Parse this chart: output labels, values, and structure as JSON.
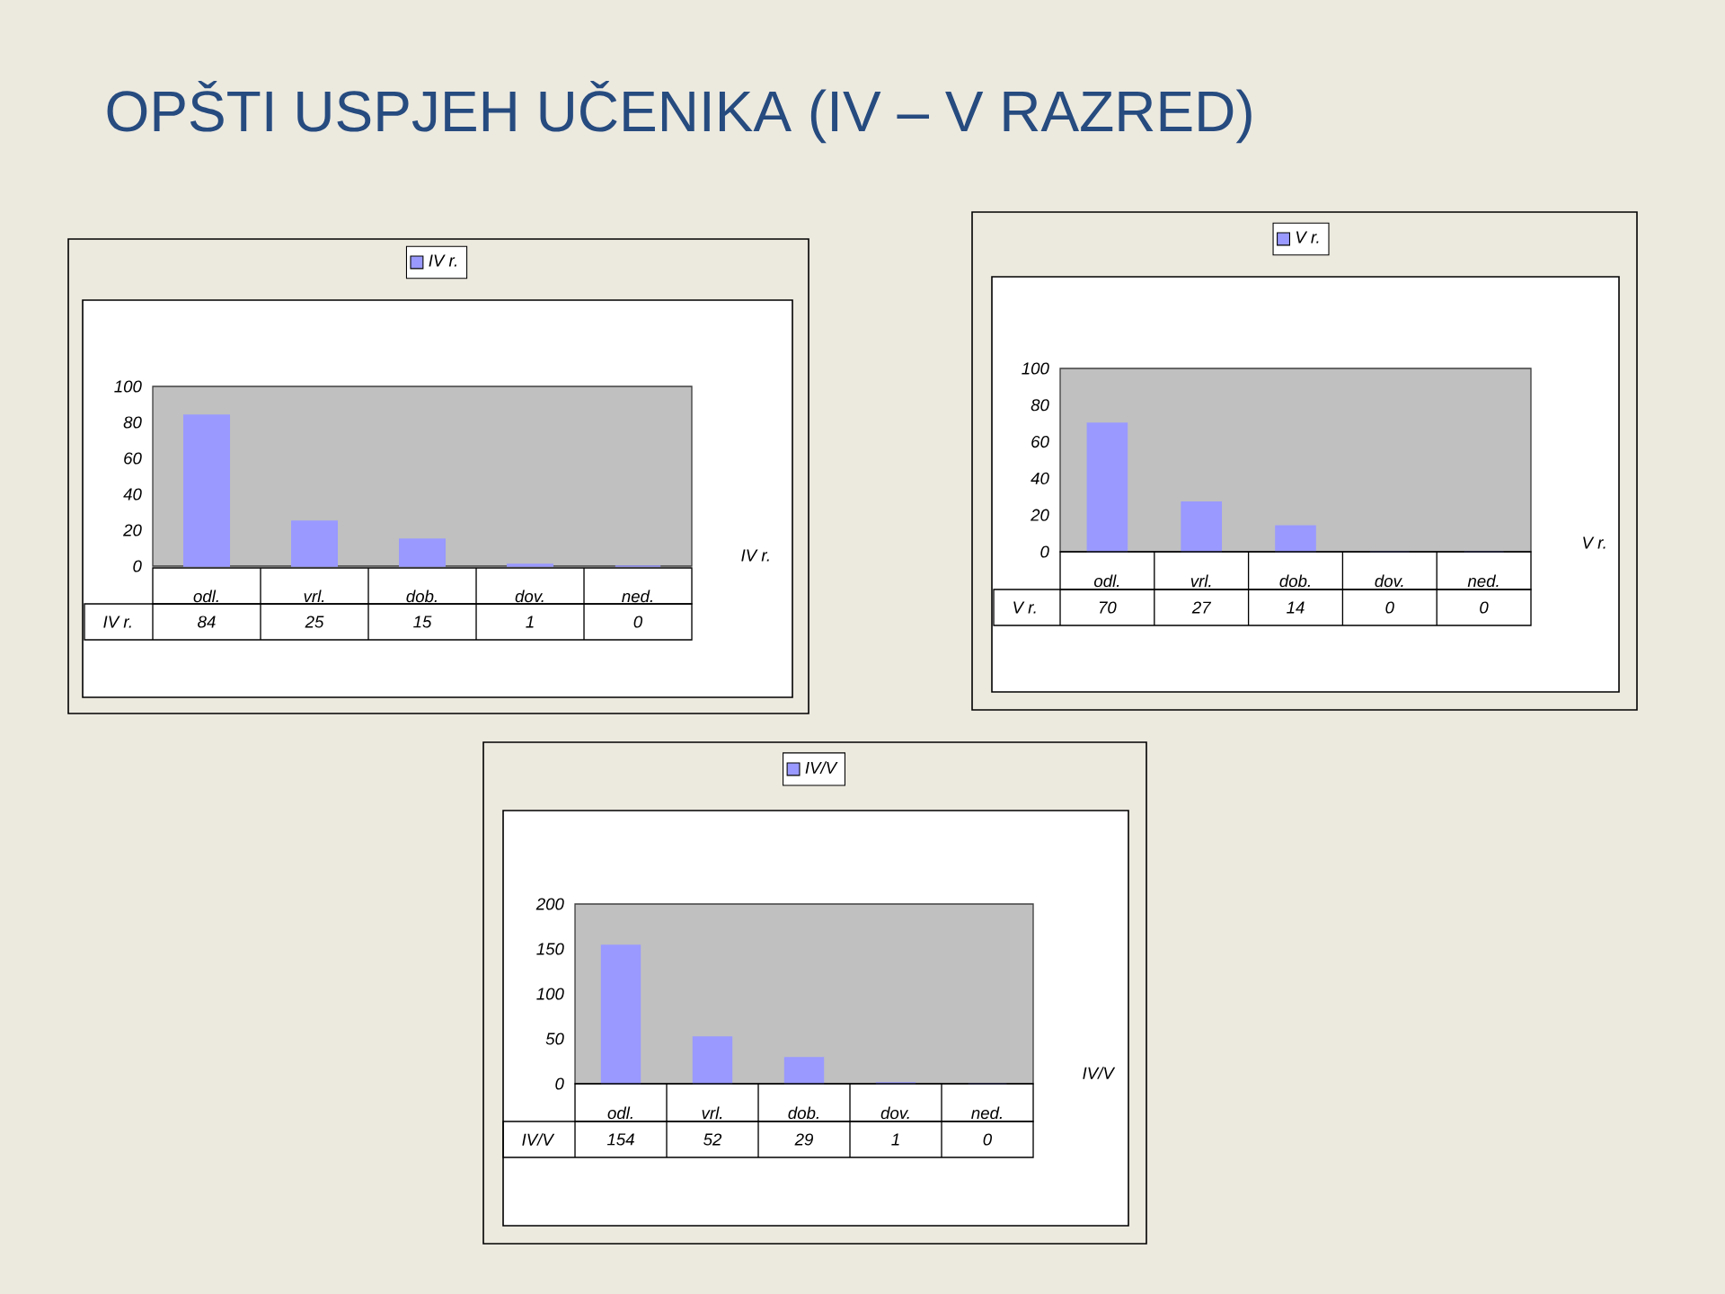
{
  "chart_data": [
    {
      "type": "bar",
      "title": "OPŠTI USPJEH UČENIKA (IV – V RAZRED)",
      "categories": [
        "odl.",
        "vrl.",
        "dob.",
        "dov.",
        "ned."
      ],
      "series": [
        {
          "name": "IV r.",
          "color": "#9999ff",
          "values": [
            84,
            25,
            15,
            1,
            0
          ]
        }
      ],
      "ylim": [
        0,
        100
      ],
      "yticks": [
        0,
        20,
        40,
        60,
        80,
        100
      ],
      "legend": "top",
      "data_labels": true
    },
    {
      "type": "bar",
      "categories": [
        "odl.",
        "vrl.",
        "dob.",
        "dov.",
        "ned."
      ],
      "series": [
        {
          "name": "V r.",
          "color": "#9999ff",
          "values": [
            70,
            27,
            14,
            0,
            0
          ]
        }
      ],
      "ylim": [
        0,
        100
      ],
      "yticks": [
        0,
        20,
        40,
        60,
        80,
        100
      ],
      "legend": "top",
      "data_labels": true
    },
    {
      "type": "bar",
      "categories": [
        "odl.",
        "vrl.",
        "dob.",
        "dov.",
        "ned."
      ],
      "series": [
        {
          "name": "IV/V",
          "color": "#9999ff",
          "values": [
            154,
            52,
            29,
            1,
            0
          ]
        }
      ],
      "ylim": [
        0,
        200
      ],
      "yticks": [
        0,
        50,
        100,
        150,
        200
      ],
      "legend": "top",
      "data_labels": true
    }
  ]
}
